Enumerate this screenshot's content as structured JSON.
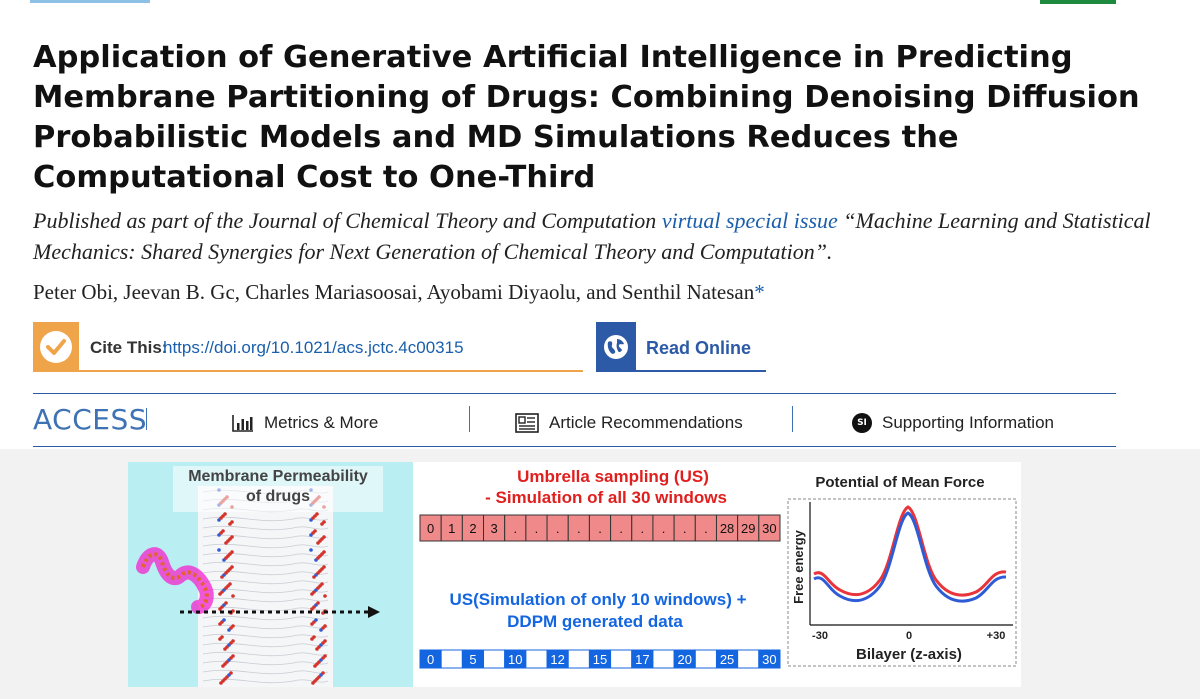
{
  "article": {
    "title_lines": [
      "Application of Generative Artificial Intelligence in Predicting",
      "Membrane Partitioning of Drugs: Combining Denoising Diffusion",
      "Probabilistic Models and MD Simulations Reduces the",
      "Computational Cost to One-Third"
    ],
    "published_prefix": "Published as part of the Journal of Chemical Theory and Computation ",
    "published_link": "virtual special issue",
    "published_suffix": " “Machine Learning and Statistical Mechanics: Shared Synergies for Next Generation of Chemical Theory and Computation”.",
    "authors": "Peter Obi, Jeevan B. Gc, Charles Mariasoosai, Ayobami Diyaolu, and Senthil Natesan",
    "corresponding_mark": "*"
  },
  "actions": {
    "cite_label": "Cite This:",
    "cite_doi": "https://doi.org/10.1021/acs.jctc.4c00315",
    "read_online": "Read Online"
  },
  "access_bar": {
    "access_label": "ACCESS",
    "metrics": "Metrics & More",
    "recommendations": "Article Recommendations",
    "supporting": "Supporting Information",
    "si_badge": "SI"
  },
  "toc_graphic": {
    "membrane_title_1": "Membrane Permeability",
    "membrane_title_2": "of drugs",
    "us_title_1": "Umbrella sampling (US)",
    "us_title_2": "- Simulation of all 30 windows",
    "all_windows": [
      "0",
      "1",
      "2",
      "3",
      ".",
      ".",
      ".",
      ".",
      ".",
      ".",
      ".",
      ".",
      ".",
      ".",
      "28",
      "29",
      "30"
    ],
    "us10_title_1": "US(Simulation of only 10 windows) +",
    "us10_title_2": "DDPM generated data",
    "selected_windows": [
      "0",
      "",
      "5",
      "",
      "10",
      "",
      "12",
      "",
      "15",
      "",
      "17",
      "",
      "20",
      "",
      "25",
      "",
      "30"
    ],
    "pmf_title": "Potential of Mean Force",
    "pmf_ylabel": "Free energy",
    "pmf_xlabel": "Bilayer (z-axis)",
    "pmf_ticks": [
      "-30",
      "0",
      "+30"
    ],
    "colors": {
      "red_series": "#e8343a",
      "blue_series": "#2e5cd6",
      "red_text": "#e0201f",
      "blue_text": "#1466e0"
    }
  }
}
